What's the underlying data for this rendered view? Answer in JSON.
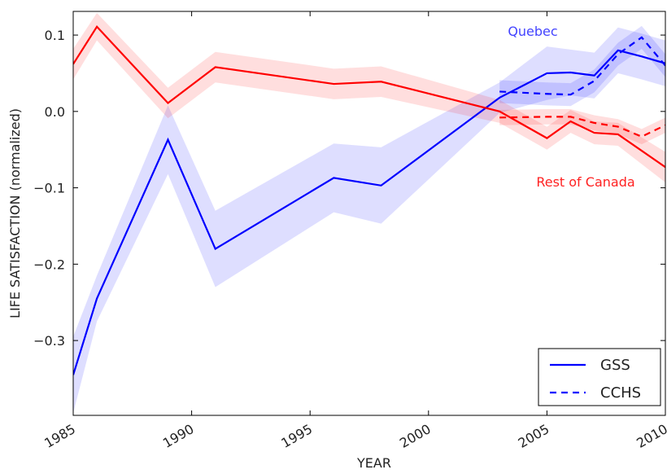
{
  "chart_data": {
    "type": "line",
    "xlabel": "YEAR",
    "ylabel": "LIFE SATISFACTION (normalized)",
    "xlim": [
      1985,
      2010
    ],
    "ylim": [
      -0.398,
      0.131
    ],
    "xticks": [
      1985,
      1990,
      1995,
      2000,
      2005,
      2010
    ],
    "yticks": [
      {
        "value": -0.3,
        "label": "−0.3"
      },
      {
        "value": -0.2,
        "label": "−0.2"
      },
      {
        "value": -0.1,
        "label": "−0.1"
      },
      {
        "value": 0,
        "label": "0.0"
      },
      0.1
    ],
    "annotations": [
      {
        "text": "Quebec",
        "color": "#4444ff"
      },
      {
        "text": "Rest of Canada",
        "color": "#ff2222"
      }
    ],
    "legend": [
      {
        "name": "GSS",
        "dashed": false,
        "color": "#0000ff"
      },
      {
        "name": "CCHS",
        "dashed": true,
        "color": "#0000ff"
      }
    ],
    "series": [
      {
        "name": "GSS",
        "color": "#0000ff",
        "x": [
          1985,
          1986,
          1989,
          1991,
          1996,
          1998,
          2003,
          2005,
          2006,
          2007,
          2008,
          2009,
          2010
        ],
        "values": [
          -0.345,
          -0.245,
          -0.037,
          -0.18,
          -0.087,
          -0.097,
          0.018,
          0.05,
          0.051,
          0.047,
          0.08,
          0.072,
          0.063
        ],
        "errors": [
          0.05,
          0.03,
          0.045,
          0.05,
          0.045,
          0.05,
          0.02,
          0.035,
          0.03,
          0.03,
          0.03,
          0.03,
          0.03
        ]
      },
      {
        "name": "CCHS",
        "color": "#0000ff",
        "x": [
          2003,
          2005,
          2006,
          2007,
          2008,
          2009,
          2010
        ],
        "values": [
          0.026,
          0.023,
          0.022,
          0.04,
          0.075,
          0.097,
          0.06
        ],
        "errors": [
          0.015,
          0.015,
          0.015,
          0.015,
          0.015,
          0.015,
          0.015
        ]
      },
      {
        "name": "GSS",
        "color": "#ff0000",
        "x": [
          1985,
          1986,
          1989,
          1991,
          1996,
          1998,
          2003,
          2005,
          2006,
          2007,
          2008,
          2010
        ],
        "values": [
          0.062,
          0.111,
          0.011,
          0.058,
          0.036,
          0.039,
          0.0,
          -0.035,
          -0.013,
          -0.028,
          -0.03,
          -0.073
        ],
        "errors": [
          0.02,
          0.018,
          0.02,
          0.02,
          0.02,
          0.02,
          0.015,
          0.015,
          0.015,
          0.015,
          0.015,
          0.02
        ]
      },
      {
        "name": "CCHS",
        "color": "#ff0000",
        "x": [
          2003,
          2005,
          2006,
          2007,
          2008,
          2009,
          2010
        ],
        "values": [
          -0.008,
          -0.007,
          -0.007,
          -0.015,
          -0.02,
          -0.033,
          -0.018
        ],
        "errors": [
          0.01,
          0.01,
          0.01,
          0.01,
          0.01,
          0.01,
          0.01
        ]
      }
    ]
  }
}
